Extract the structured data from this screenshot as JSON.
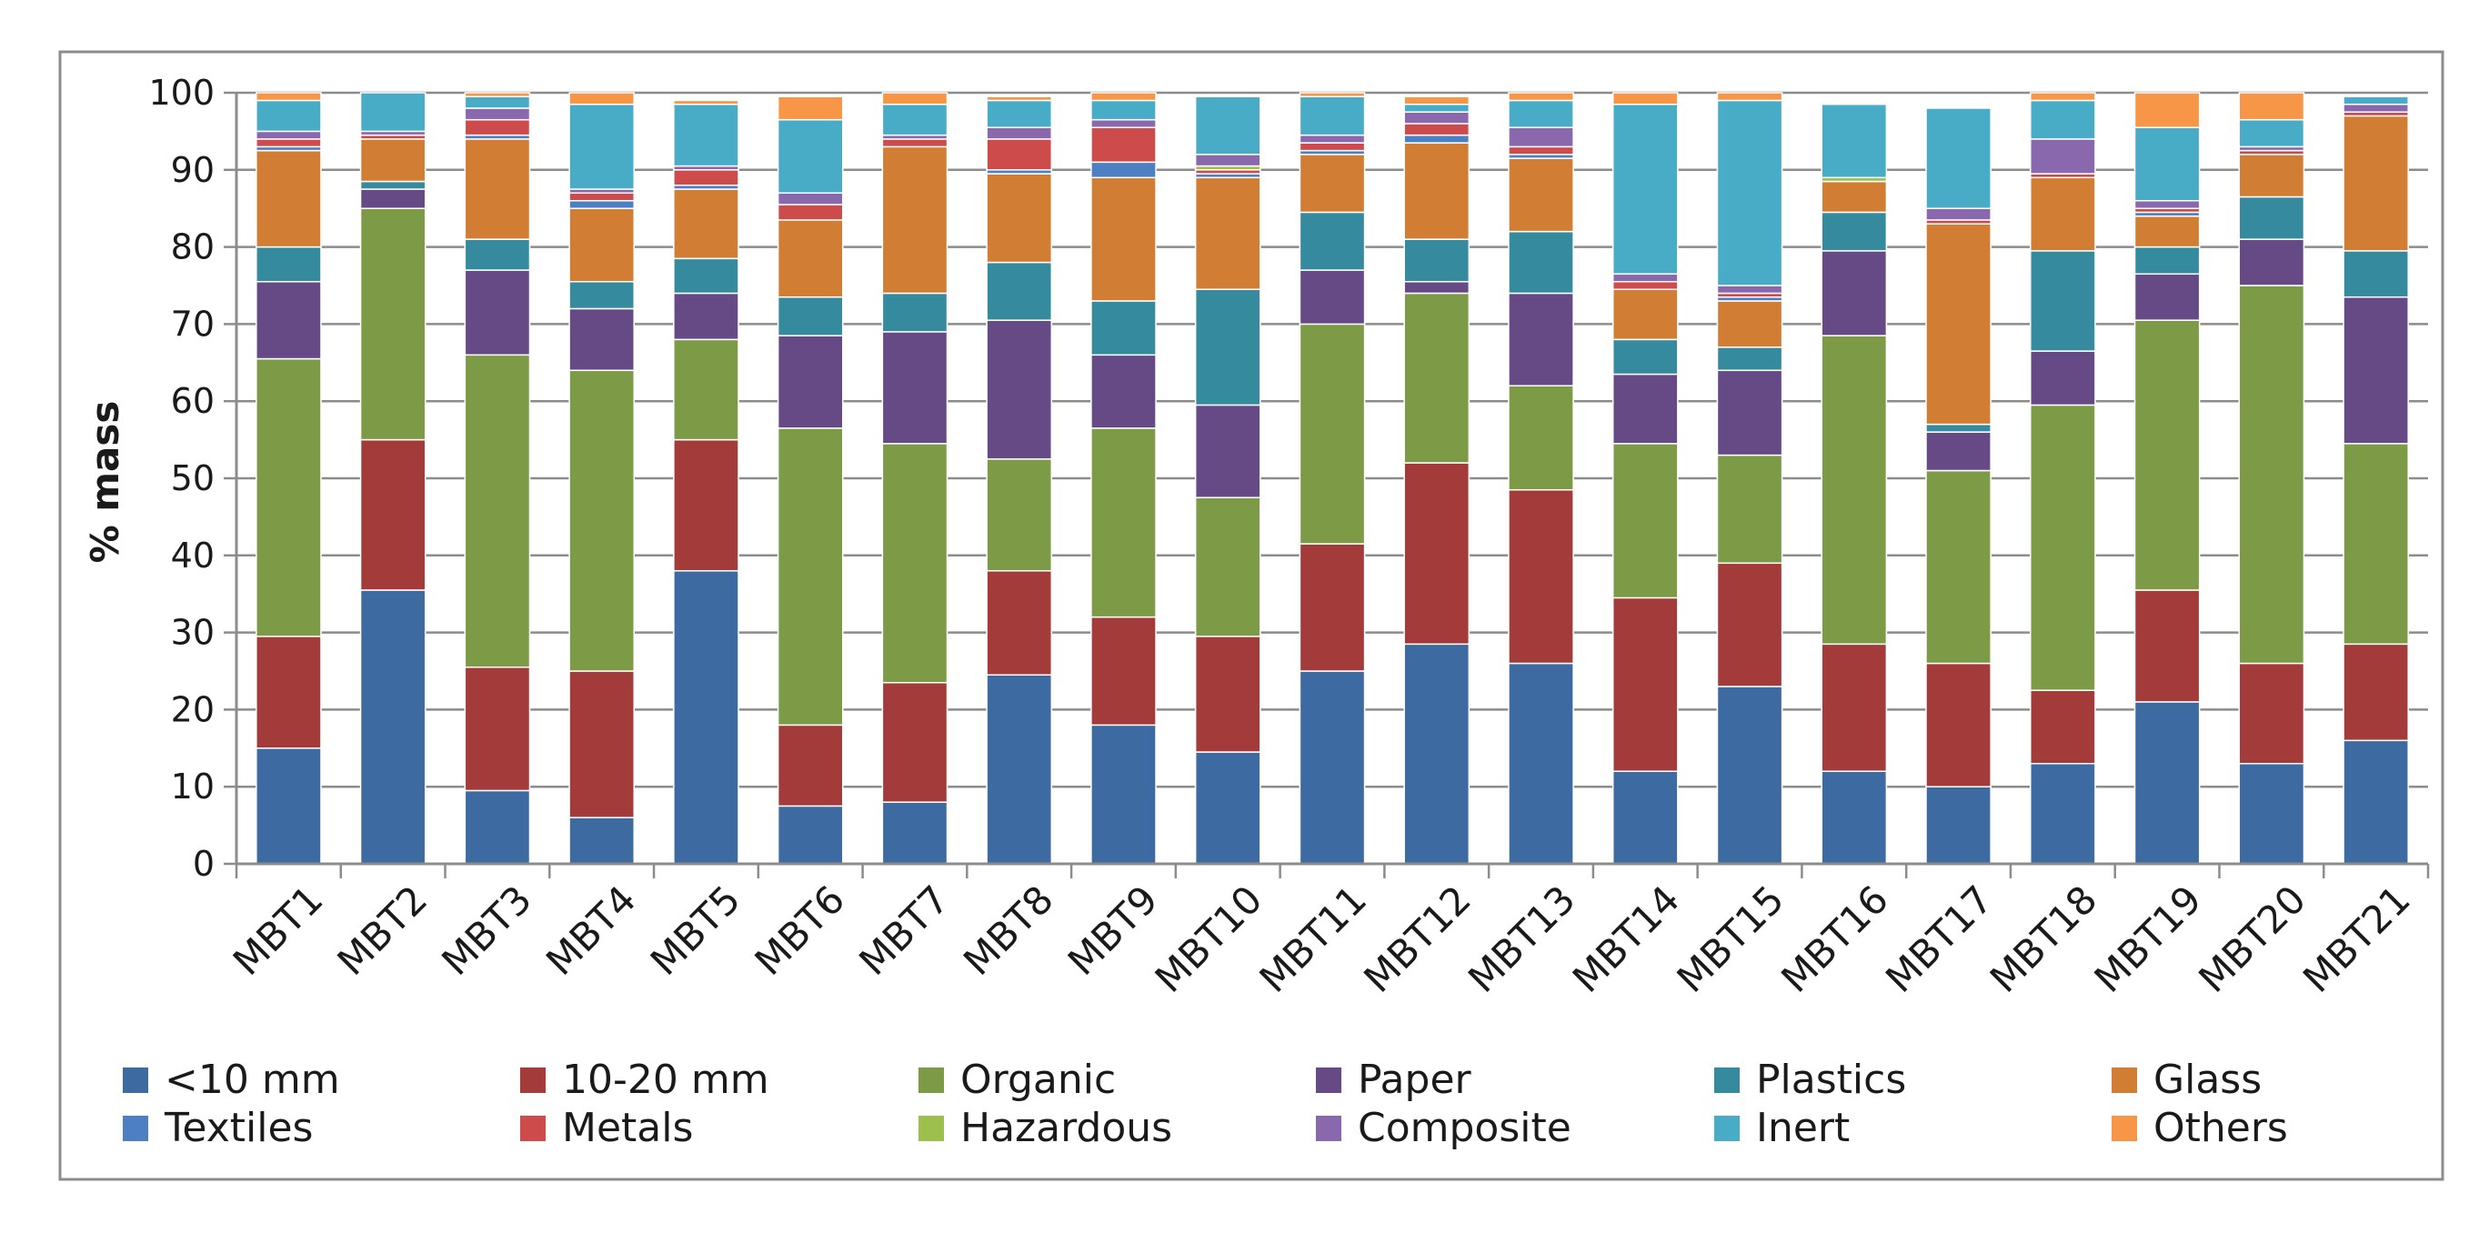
{
  "chart_data": {
    "type": "bar",
    "stacked": true,
    "title": "",
    "xlabel": "",
    "ylabel": "% mass",
    "ylim": [
      0,
      100
    ],
    "yticks": [
      0,
      10,
      20,
      30,
      40,
      50,
      60,
      70,
      80,
      90,
      100
    ],
    "grid": true,
    "legend_position": "bottom",
    "categories": [
      "MBT1",
      "MBT2",
      "MBT3",
      "MBT4",
      "MBT5",
      "MBT6",
      "MBT7",
      "MBT8",
      "MBT9",
      "MBT10",
      "MBT11",
      "MBT12",
      "MBT13",
      "MBT14",
      "MBT15",
      "MBT16",
      "MBT17",
      "MBT18",
      "MBT19",
      "MBT20",
      "MBT21"
    ],
    "series": [
      {
        "name": "<10 mm",
        "color": "#3C6AA1",
        "values": [
          15,
          35.5,
          9.5,
          6,
          38,
          7.5,
          8,
          24.5,
          18,
          14.5,
          25,
          28.5,
          26,
          12,
          23,
          12,
          10,
          13,
          21,
          13,
          16
        ]
      },
      {
        "name": "10-20 mm",
        "color": "#A23B3A",
        "values": [
          14.5,
          19.5,
          16,
          19,
          17,
          10.5,
          15.5,
          13.5,
          14,
          15,
          16.5,
          23.5,
          22.5,
          22.5,
          16,
          16.5,
          16,
          9.5,
          14.5,
          13,
          12.5
        ]
      },
      {
        "name": "Organic",
        "color": "#7D9A46",
        "values": [
          36,
          30,
          40.5,
          39,
          13,
          38.5,
          31,
          14.5,
          24.5,
          18,
          28.5,
          22,
          13.5,
          20,
          14,
          40,
          25,
          37,
          35,
          49,
          26
        ]
      },
      {
        "name": "Paper",
        "color": "#654A86",
        "values": [
          10,
          2.5,
          11,
          8,
          6,
          12,
          14.5,
          18,
          9.5,
          12,
          7,
          1.5,
          12,
          9,
          11,
          11,
          5,
          7,
          6,
          6,
          19
        ]
      },
      {
        "name": "Plastics",
        "color": "#368A9E",
        "values": [
          4.5,
          1,
          4,
          3.5,
          4.5,
          5,
          5,
          7.5,
          7,
          15,
          7.5,
          5.5,
          8,
          4.5,
          3,
          5,
          1,
          13,
          3.5,
          5.5,
          6
        ]
      },
      {
        "name": "Glass",
        "color": "#D17E34",
        "values": [
          12.5,
          5.5,
          13,
          9.5,
          9,
          10,
          19,
          11.5,
          16,
          14.5,
          7.5,
          12.5,
          9.5,
          6.5,
          6,
          4,
          26,
          9.5,
          4,
          5.5,
          17.5
        ]
      },
      {
        "name": "Textiles",
        "color": "#4C7FC4",
        "values": [
          0.5,
          0,
          0.5,
          1,
          0.5,
          0,
          0,
          0.5,
          2,
          0.5,
          0.5,
          1,
          0.5,
          0,
          0.5,
          0,
          0,
          0,
          0.5,
          0,
          0
        ]
      },
      {
        "name": "Metals",
        "color": "#CD4B4A",
        "values": [
          1,
          0.5,
          2,
          1,
          2,
          2,
          1,
          4,
          4.5,
          0.5,
          1,
          1.5,
          1,
          1,
          0.5,
          0,
          0.5,
          0.5,
          0.5,
          0.5,
          0.5
        ]
      },
      {
        "name": "Hazardous",
        "color": "#9CBF4E",
        "values": [
          0,
          0,
          0,
          0,
          0,
          0,
          0,
          0,
          0,
          0.5,
          0,
          0,
          0,
          0,
          0,
          0.5,
          0,
          0,
          0,
          0,
          0
        ]
      },
      {
        "name": "Composite",
        "color": "#8A68AE",
        "values": [
          1,
          0.5,
          1.5,
          0.5,
          0.5,
          1.5,
          0.5,
          1.5,
          1,
          1.5,
          1,
          1.5,
          2.5,
          1,
          1,
          0,
          1.5,
          4.5,
          1,
          0.5,
          1
        ]
      },
      {
        "name": "Inert",
        "color": "#49ACC6",
        "values": [
          4,
          5,
          1.5,
          11,
          8,
          9.5,
          4,
          3.5,
          2.5,
          7.5,
          5,
          1,
          3.5,
          22,
          24,
          9.5,
          13,
          5,
          9.5,
          3.5,
          1
        ]
      },
      {
        "name": "Others",
        "color": "#F79646",
        "values": [
          1,
          0,
          0.5,
          1.5,
          0.5,
          3,
          1.5,
          0.5,
          1,
          0,
          0.5,
          1,
          1,
          1.5,
          1,
          0,
          0,
          1.5,
          4.5,
          3.5,
          0
        ]
      }
    ]
  }
}
